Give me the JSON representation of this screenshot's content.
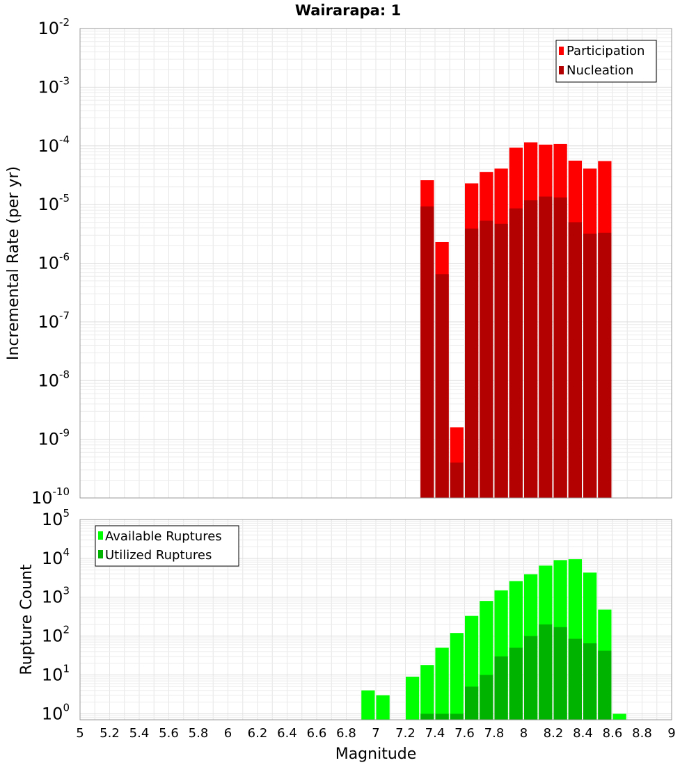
{
  "title": "Wairarapa: 1",
  "colors": {
    "participation": "#ff0000",
    "nucleation": "#b30000",
    "available": "#00ff00",
    "utilized": "#00b300",
    "grid": "#e6e6e6",
    "frame": "#999999"
  },
  "chart_data": [
    {
      "type": "bar",
      "scale": "log",
      "ylabel": "Incremental Rate (per yr)",
      "ylim": [
        1e-10,
        0.01
      ],
      "y_ticks": [
        {
          "base": "10",
          "exp": "-10",
          "value": 1e-10
        },
        {
          "base": "10",
          "exp": "-9",
          "value": 1e-09
        },
        {
          "base": "10",
          "exp": "-8",
          "value": 1e-08
        },
        {
          "base": "10",
          "exp": "-7",
          "value": 1e-07
        },
        {
          "base": "10",
          "exp": "-6",
          "value": 1e-06
        },
        {
          "base": "10",
          "exp": "-5",
          "value": 1e-05
        },
        {
          "base": "10",
          "exp": "-4",
          "value": 0.0001
        },
        {
          "base": "10",
          "exp": "-3",
          "value": 0.001
        },
        {
          "base": "10",
          "exp": "-2",
          "value": 0.01
        }
      ],
      "legend_position": "top-right",
      "x": [
        7.3,
        7.4,
        7.5,
        7.6,
        7.7,
        7.8,
        7.9,
        8.0,
        8.1,
        8.2,
        8.3,
        8.4,
        8.5
      ],
      "series": [
        {
          "name": "Participation",
          "values": [
            2.6e-05,
            2.3e-06,
            1.6e-09,
            2.3e-05,
            3.6e-05,
            4.1e-05,
            9.3e-05,
            0.000115,
            0.000105,
            0.000108,
            5.6e-05,
            4.1e-05,
            5.5e-05
          ]
        },
        {
          "name": "Nucleation",
          "values": [
            9.3e-06,
            6.5e-07,
            4e-10,
            3.9e-06,
            5.3e-06,
            4.7e-06,
            8.6e-06,
            1.18e-05,
            1.37e-05,
            1.32e-05,
            5e-06,
            3.2e-06,
            3.3e-06
          ]
        }
      ]
    },
    {
      "type": "bar",
      "scale": "log",
      "ylabel": "Rupture Count",
      "xlabel": "Magnitude",
      "ylim": [
        0.7,
        100000.0
      ],
      "y_ticks": [
        {
          "base": "10",
          "exp": "0",
          "value": 1
        },
        {
          "base": "10",
          "exp": "1",
          "value": 10
        },
        {
          "base": "10",
          "exp": "2",
          "value": 100
        },
        {
          "base": "10",
          "exp": "3",
          "value": 1000
        },
        {
          "base": "10",
          "exp": "4",
          "value": 10000
        },
        {
          "base": "10",
          "exp": "5",
          "value": 100000
        }
      ],
      "legend_position": "top-left",
      "x": [
        6.9,
        7.0,
        7.1,
        7.2,
        7.3,
        7.4,
        7.5,
        7.6,
        7.7,
        7.8,
        7.9,
        8.0,
        8.1,
        8.2,
        8.3,
        8.4,
        8.5,
        8.6
      ],
      "series": [
        {
          "name": "Available Ruptures",
          "values": [
            4,
            3,
            0,
            9,
            18,
            50,
            120,
            330,
            800,
            1500,
            2600,
            3900,
            6500,
            9000,
            9500,
            4300,
            480,
            1
          ]
        },
        {
          "name": "Utilized Ruptures",
          "values": [
            0,
            0,
            0,
            0,
            1,
            1,
            1,
            5,
            10,
            30,
            50,
            100,
            200,
            170,
            85,
            65,
            42,
            0
          ]
        }
      ]
    }
  ],
  "x_axis": {
    "label": "Magnitude",
    "range": [
      5,
      9
    ],
    "ticks": [
      "5",
      "5.2",
      "5.4",
      "5.6",
      "5.8",
      "6",
      "6.2",
      "6.4",
      "6.6",
      "6.8",
      "7",
      "7.2",
      "7.4",
      "7.6",
      "7.8",
      "8",
      "8.2",
      "8.4",
      "8.6",
      "8.8",
      "9"
    ]
  }
}
